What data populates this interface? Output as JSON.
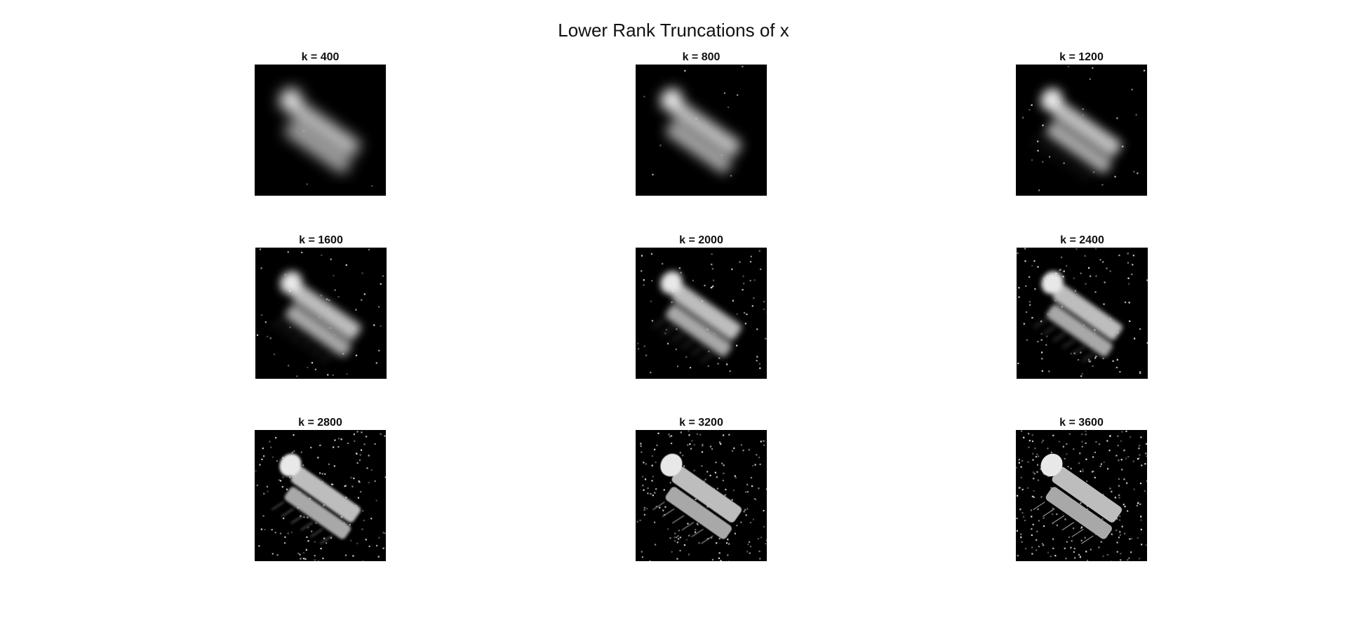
{
  "figure": {
    "title": "Lower Rank Truncations of x"
  },
  "panels": [
    {
      "title": "k = 400",
      "k": 400
    },
    {
      "title": "k = 800",
      "k": 800
    },
    {
      "title": "k = 1200",
      "k": 1200
    },
    {
      "title": "k = 1600",
      "k": 1600
    },
    {
      "title": "k = 2000",
      "k": 2000
    },
    {
      "title": "k = 2400",
      "k": 2400
    },
    {
      "title": "k = 2800",
      "k": 2800
    },
    {
      "title": "k = 3200",
      "k": 3200
    },
    {
      "title": "k = 3600",
      "k": 3600
    }
  ],
  "colors": {
    "background": "#ffffff",
    "image_background": "#000000",
    "image_foreground": "#e8e8e8"
  }
}
